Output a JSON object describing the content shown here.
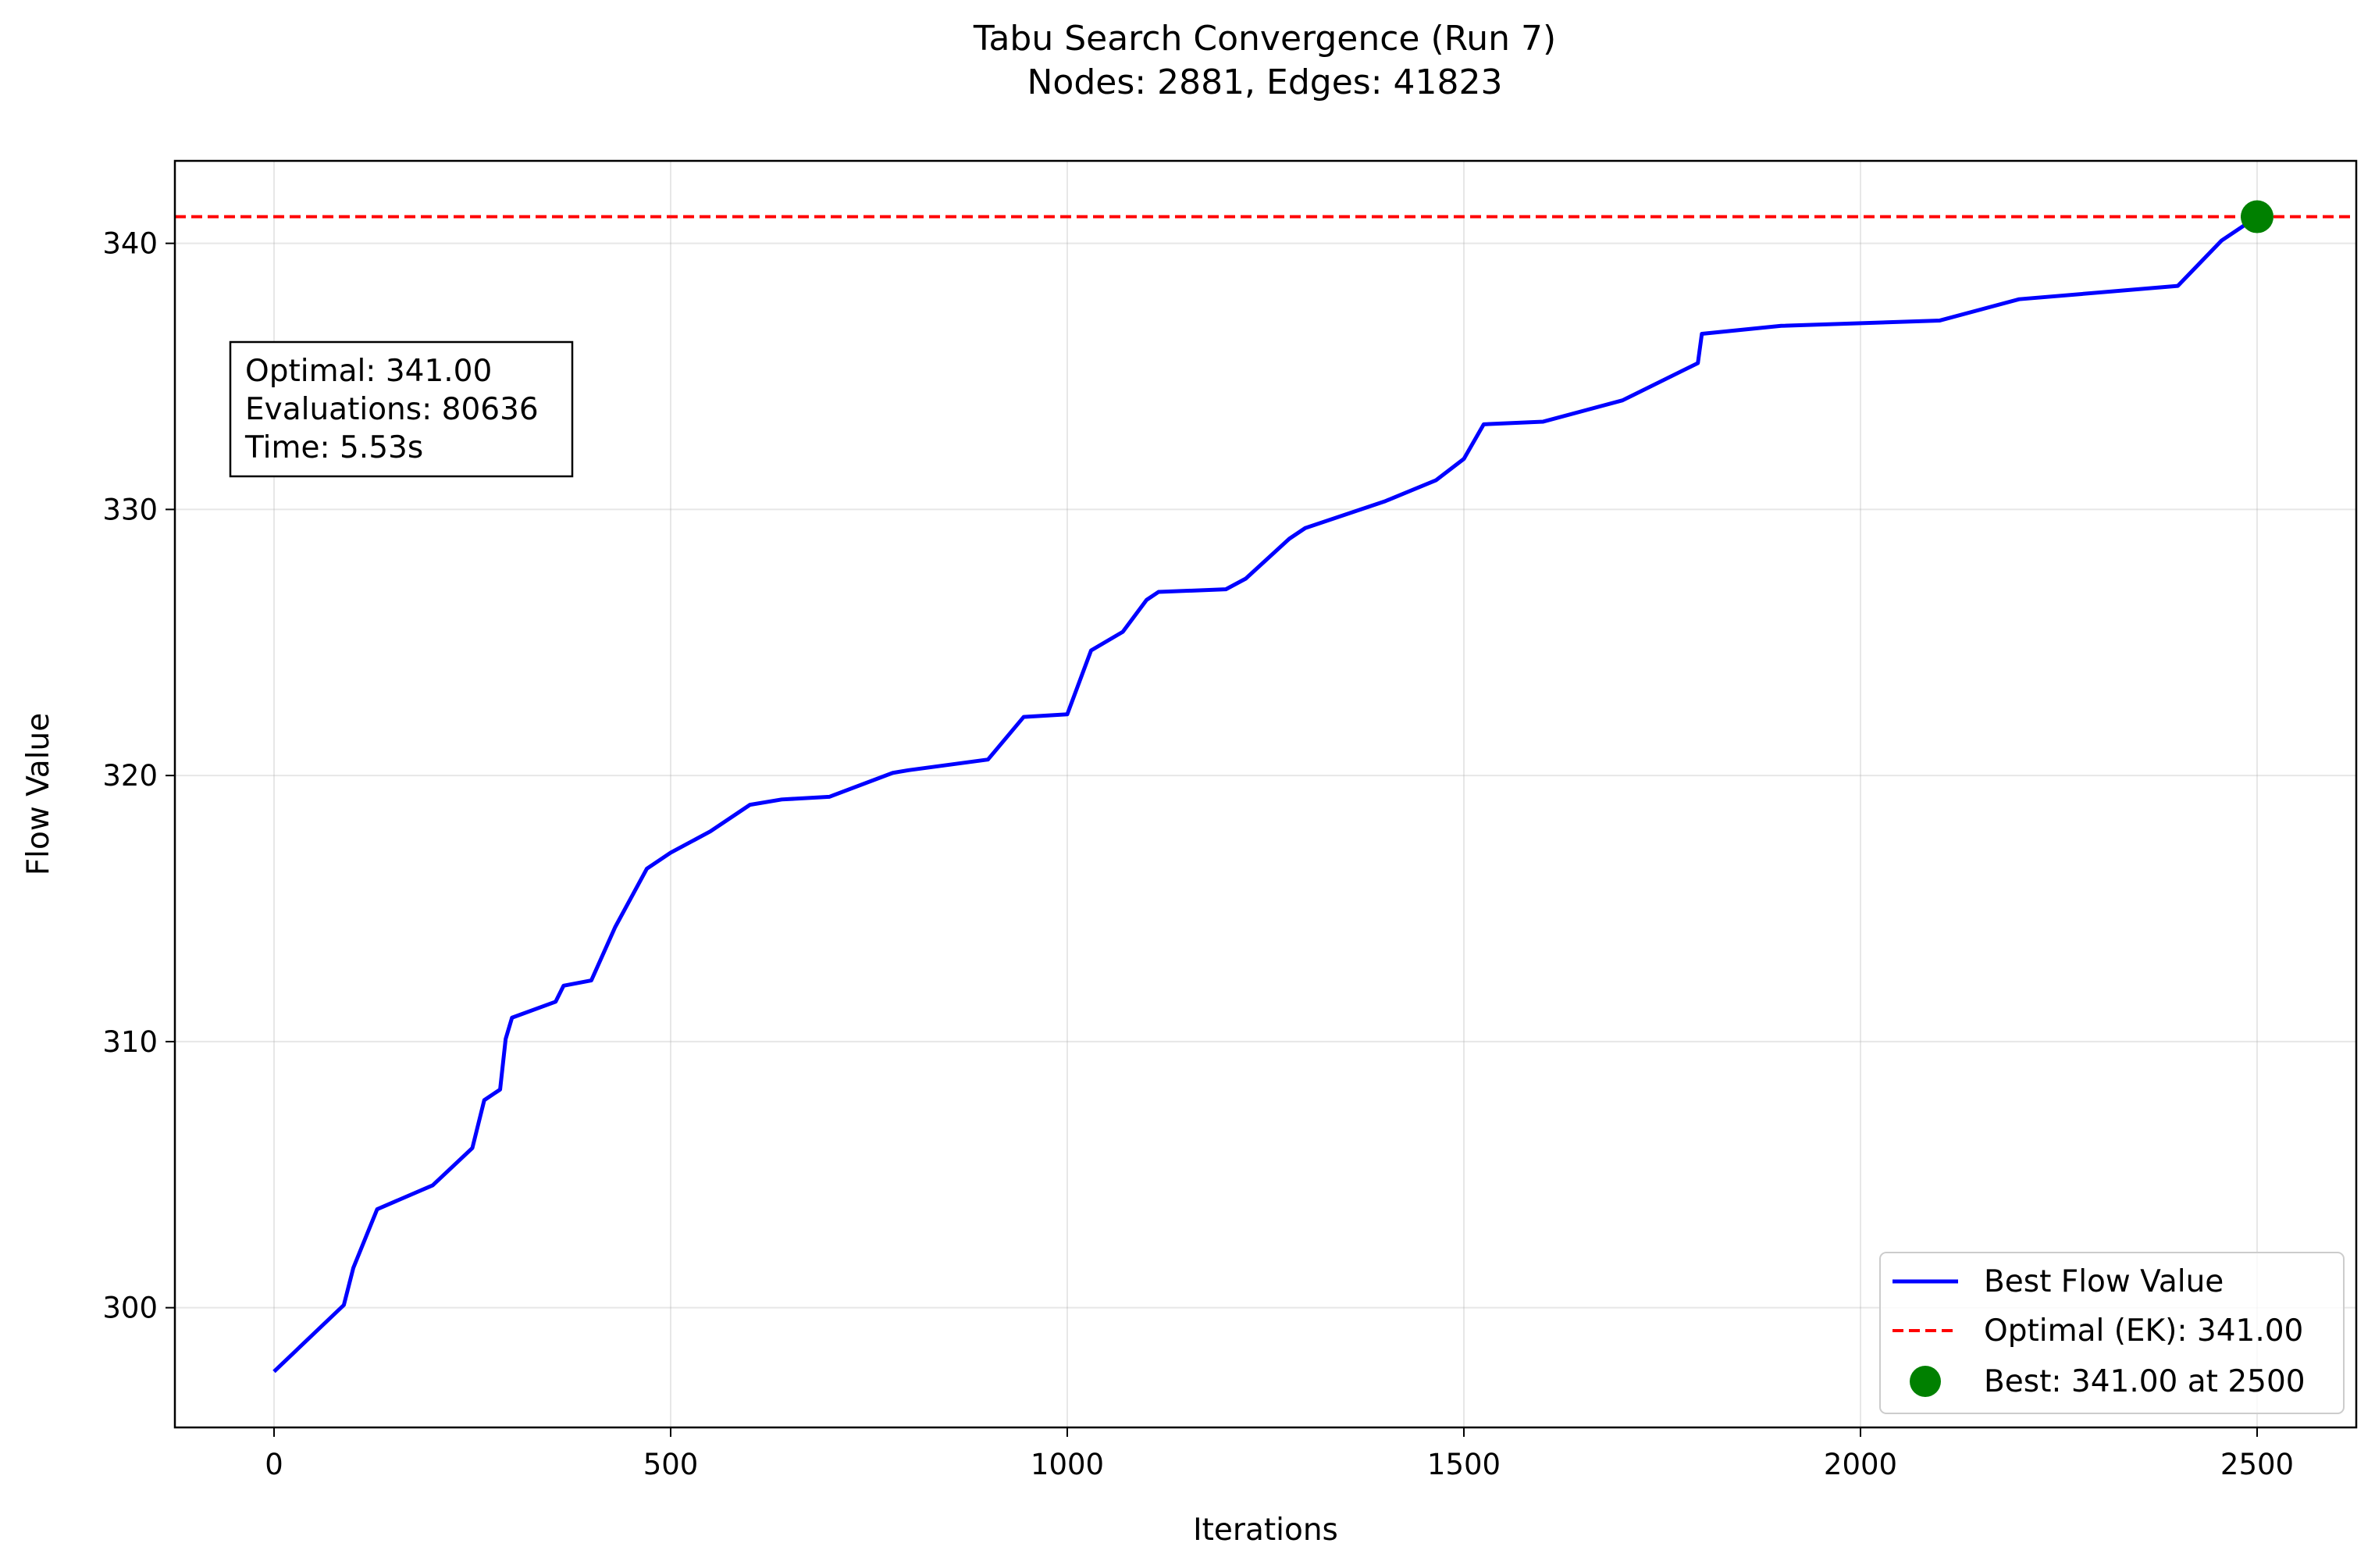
{
  "chart_data": {
    "type": "line",
    "title_line1": "Tabu Search Convergence (Run 7)",
    "title_line2": "Nodes: 2881, Edges: 41823",
    "xlabel": "Iterations",
    "ylabel": "Flow Value",
    "xlim": [
      -125,
      2625
    ],
    "ylim": [
      295.5,
      343.1
    ],
    "xticks": [
      0,
      500,
      1000,
      1500,
      2000,
      2500
    ],
    "yticks": [
      300,
      310,
      320,
      330,
      340
    ],
    "grid": true,
    "legend_position": "lower right",
    "series": [
      {
        "name": "Best Flow Value",
        "color": "#0000ff",
        "x": [
          0,
          88,
          100,
          130,
          200,
          250,
          265,
          285,
          292,
          300,
          355,
          365,
          400,
          430,
          470,
          500,
          550,
          600,
          640,
          700,
          780,
          800,
          900,
          945,
          1000,
          1030,
          1070,
          1100,
          1115,
          1200,
          1225,
          1280,
          1300,
          1400,
          1465,
          1500,
          1525,
          1600,
          1700,
          1795,
          1800,
          1900,
          2100,
          2200,
          2400,
          2455,
          2500
        ],
        "y": [
          297.6,
          300.1,
          301.5,
          303.7,
          304.6,
          306.0,
          307.8,
          308.2,
          310.1,
          310.9,
          311.5,
          312.1,
          312.3,
          314.3,
          316.5,
          317.1,
          317.9,
          318.9,
          319.1,
          319.2,
          320.1,
          320.2,
          320.6,
          322.2,
          322.3,
          324.7,
          325.4,
          326.6,
          326.9,
          327.0,
          327.4,
          328.9,
          329.3,
          330.3,
          331.1,
          331.9,
          333.2,
          333.3,
          334.1,
          335.5,
          336.6,
          336.9,
          337.1,
          337.9,
          338.4,
          340.1,
          341.0
        ]
      },
      {
        "name": "Optimal (EK): 341.00",
        "color": "#ff0000",
        "style": "dashed",
        "y": 341.0
      },
      {
        "name": "Best: 341.00 at 2500",
        "color": "#008000",
        "style": "marker",
        "x": 2500,
        "y": 341.0
      }
    ],
    "annotation": {
      "line1": "Optimal: 341.00",
      "line2": "Evaluations: 80636",
      "line3": "Time: 5.53s"
    }
  }
}
